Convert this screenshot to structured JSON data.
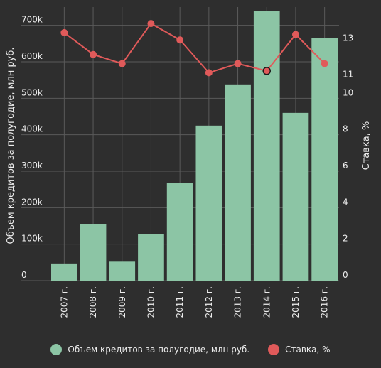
{
  "chart_data": {
    "type": "bar",
    "categories": [
      "2007 г.",
      "2008 г.",
      "2009 г.",
      "2010 г.",
      "2011 г.",
      "2012 г.",
      "2013 г.",
      "2014 г.",
      "2015 г.",
      "2016 г."
    ],
    "series": [
      {
        "name": "Объем кредитов за полугодие, млн руб.",
        "type": "bar",
        "axis": "left",
        "color": "#8cc5a5",
        "values": [
          47000,
          155000,
          52000,
          127000,
          268000,
          425000,
          538000,
          775000,
          460000,
          665000
        ]
      },
      {
        "name": "Ставка, %",
        "type": "line",
        "axis": "right",
        "color": "#e05a5a",
        "values": [
          13.6,
          12.4,
          11.9,
          14.1,
          13.2,
          11.4,
          11.9,
          11.5,
          13.5,
          11.9
        ]
      }
    ],
    "ylabel": "Объем кредитов за полугодие, млн руб.",
    "y2label": "Ставка, %",
    "ylim": [
      0,
      750000
    ],
    "y2lim": [
      0,
      15
    ],
    "yticks": [
      0,
      100000,
      200000,
      300000,
      400000,
      500000,
      600000,
      700000
    ],
    "yticklabels": [
      "0",
      "100k",
      "200k",
      "300k",
      "400k",
      "500k",
      "600k",
      "700k"
    ],
    "y2ticks": [
      0,
      2,
      4,
      6,
      8,
      10,
      11,
      13
    ],
    "y2ticklabels": [
      "0",
      "2",
      "4",
      "6",
      "8",
      "10",
      "11",
      "13"
    ],
    "highlight_index": 7,
    "grid": true,
    "legend_position": "bottom"
  },
  "colors": {
    "background": "#2e2e2e",
    "bar": "#8cc5a5",
    "line": "#e05a5a",
    "grid": "#5a5a5a",
    "text": "#ececec"
  }
}
